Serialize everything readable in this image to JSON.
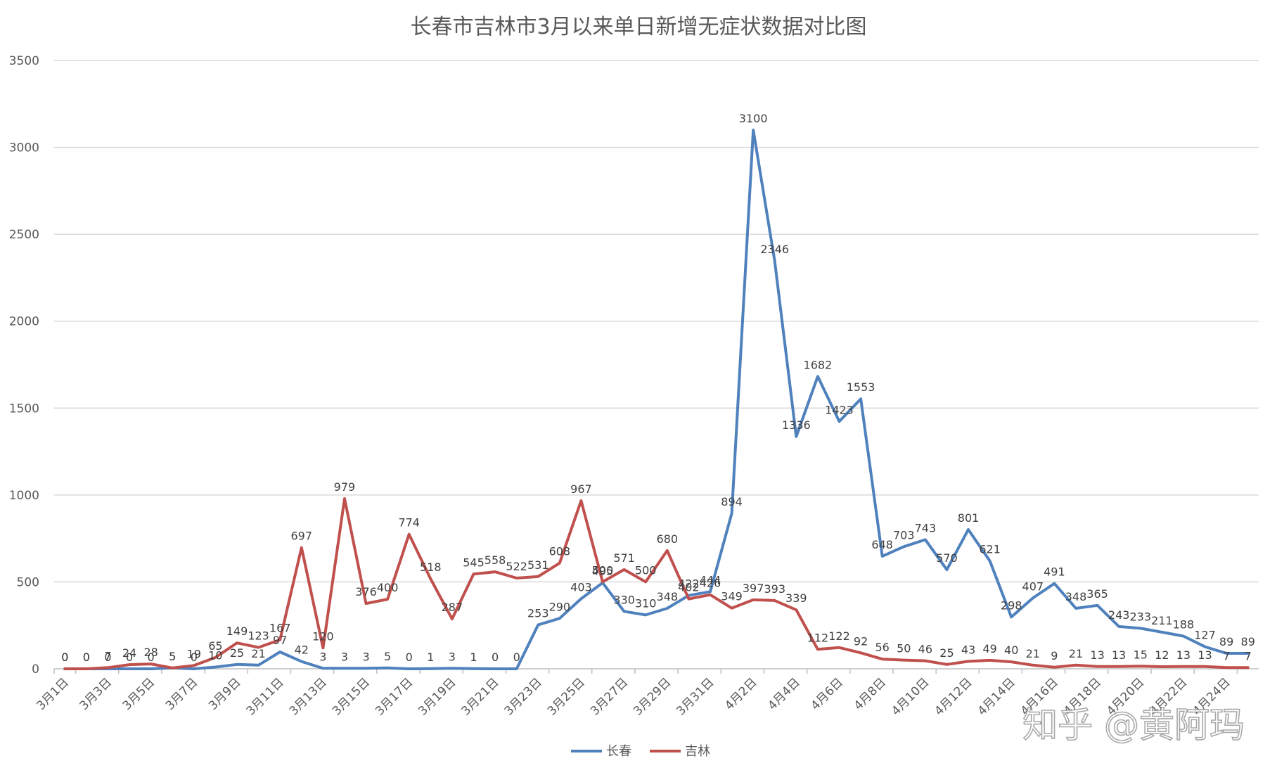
{
  "watermark": "知乎 @黄阿玛",
  "chart_data": {
    "type": "line",
    "title": "长春市吉林市3月以来单日新增无症状数据对比图",
    "ylim": [
      0,
      3500
    ],
    "yticks": [
      0,
      500,
      1000,
      1500,
      2000,
      2500,
      3000,
      3500
    ],
    "grid": true,
    "legend_position": "bottom",
    "categories": [
      "3月1日",
      "3月2日",
      "3月3日",
      "3月4日",
      "3月5日",
      "3月6日",
      "3月7日",
      "3月8日",
      "3月9日",
      "3月10日",
      "3月11日",
      "3月12日",
      "3月13日",
      "3月14日",
      "3月15日",
      "3月16日",
      "3月17日",
      "3月18日",
      "3月19日",
      "3月20日",
      "3月21日",
      "3月22日",
      "3月23日",
      "3月24日",
      "3月25日",
      "3月26日",
      "3月27日",
      "3月28日",
      "3月29日",
      "3月30日",
      "3月31日",
      "4月1日",
      "4月2日",
      "4月3日",
      "4月4日",
      "4月5日",
      "4月6日",
      "4月7日",
      "4月8日",
      "4月9日",
      "4月10日",
      "4月11日",
      "4月12日",
      "4月13日",
      "4月14日",
      "4月15日",
      "4月16日",
      "4月17日",
      "4月18日",
      "4月19日",
      "4月20日",
      "4月21日",
      "4月22日",
      "4月23日",
      "4月24日",
      "4月25日"
    ],
    "x_tick_labels": [
      "3月1日",
      "3月3日",
      "3月5日",
      "3月7日",
      "3月9日",
      "3月11日",
      "3月13日",
      "3月15日",
      "3月17日",
      "3月19日",
      "3月21日",
      "3月23日",
      "3月25日",
      "3月27日",
      "3月29日",
      "3月31日",
      "4月2日",
      "4月4日",
      "4月6日",
      "4月8日",
      "4月10日",
      "4月12日",
      "4月14日",
      "4月16日",
      "4月18日",
      "4月20日",
      "4月22日",
      "4月24日"
    ],
    "series": [
      {
        "name": "长春",
        "color": "#4f81bd",
        "values": [
          0,
          0,
          0,
          0,
          0,
          5,
          0,
          10,
          25,
          21,
          97,
          42,
          3,
          3,
          3,
          5,
          0,
          1,
          3,
          1,
          0,
          0,
          253,
          290,
          403,
          495,
          330,
          310,
          348,
          422,
          444,
          894,
          3100,
          2346,
          1336,
          1682,
          1423,
          1553,
          648,
          703,
          743,
          570,
          801,
          621,
          298,
          407,
          491,
          348,
          365,
          243,
          233,
          211,
          188,
          127,
          89,
          89
        ]
      },
      {
        "name": "吉林",
        "color": "#c0504d",
        "values": [
          0,
          0,
          7,
          24,
          28,
          5,
          19,
          65,
          149,
          123,
          167,
          697,
          120,
          979,
          376,
          400,
          774,
          518,
          287,
          545,
          558,
          522,
          531,
          608,
          967,
          500,
          571,
          500,
          680,
          402,
          426,
          349,
          397,
          393,
          339,
          112,
          122,
          92,
          56,
          50,
          46,
          25,
          43,
          49,
          40,
          21,
          9,
          21,
          13,
          13,
          15,
          12,
          13,
          13,
          7,
          7
        ]
      }
    ]
  }
}
